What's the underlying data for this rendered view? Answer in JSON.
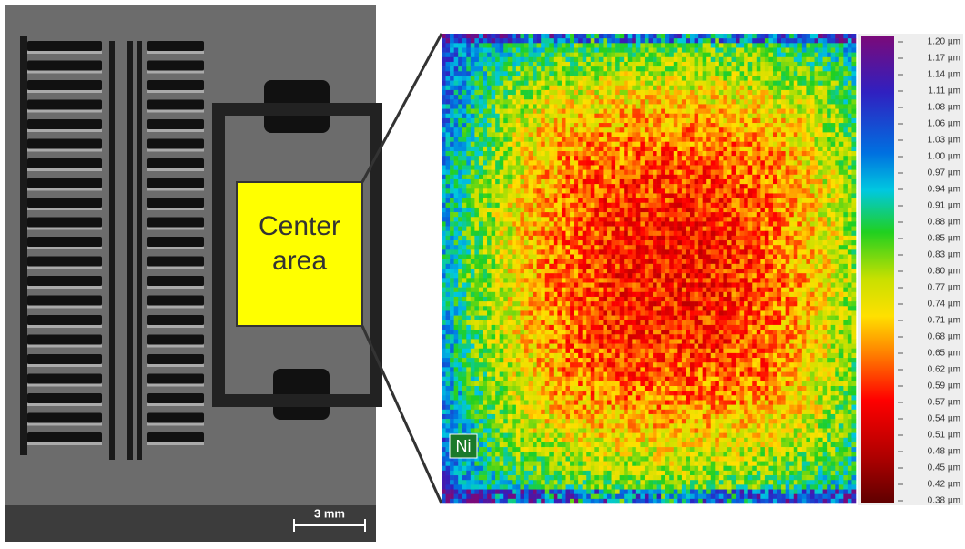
{
  "inset": {
    "label": "Center area",
    "scale_bar": "3 mm"
  },
  "map": {
    "element": "Ni",
    "colorbar_labels": [
      "1.20 µm",
      "1.17 µm",
      "1.14 µm",
      "1.11 µm",
      "1.08 µm",
      "1.06 µm",
      "1.03 µm",
      "1.00 µm",
      "0.97 µm",
      "0.94 µm",
      "0.91 µm",
      "0.88 µm",
      "0.85 µm",
      "0.83 µm",
      "0.80 µm",
      "0.77 µm",
      "0.74 µm",
      "0.71 µm",
      "0.68 µm",
      "0.65 µm",
      "0.62 µm",
      "0.59 µm",
      "0.57 µm",
      "0.54 µm",
      "0.51 µm",
      "0.48 µm",
      "0.45 µm",
      "0.42 µm",
      "0.38 µm"
    ]
  }
}
